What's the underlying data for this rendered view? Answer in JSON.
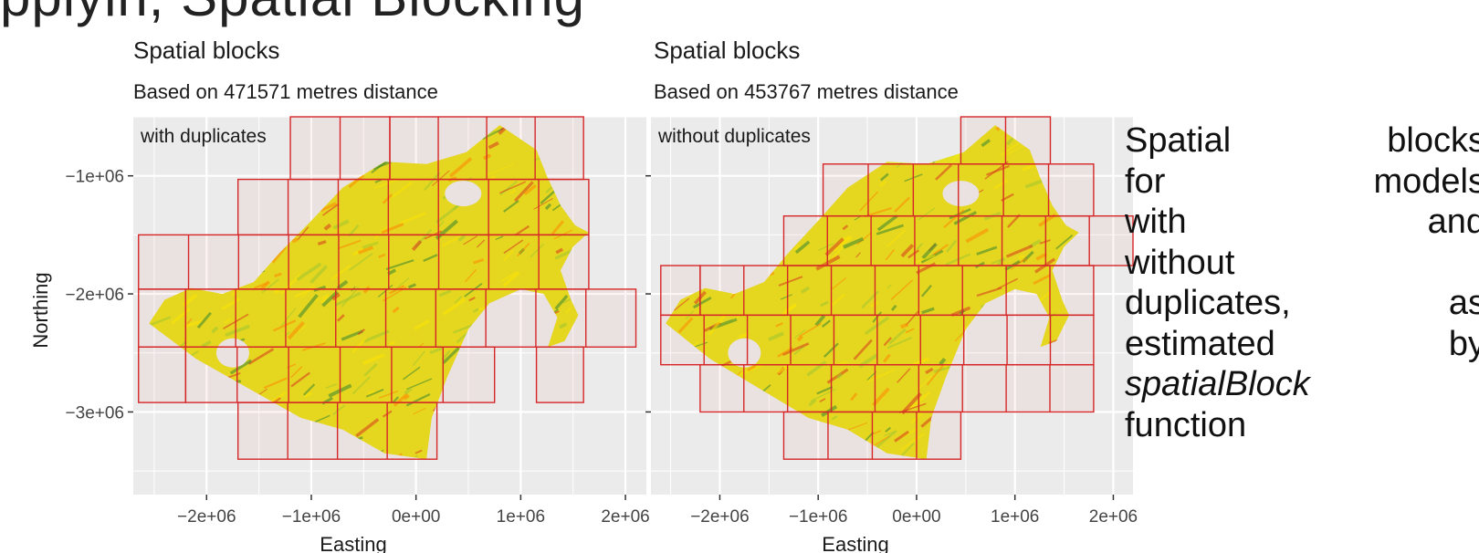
{
  "slide": {
    "title": "pplyin, Spatial Blocking"
  },
  "chart_data": [
    {
      "type": "heatmap",
      "title": "Spatial blocks",
      "subtitle": "Based on 471571 metres distance",
      "annotation": "with duplicates",
      "xlabel": "Easting",
      "ylabel": "Northing",
      "xlim": [
        -2700000,
        2200000
      ],
      "ylim": [
        -3700000,
        -500000
      ],
      "x_ticks": [
        -2000000,
        -1000000,
        0,
        1000000,
        2000000
      ],
      "x_tick_labels": [
        "−2e+06",
        "−1e+06",
        "0e+00",
        "1e+06",
        "2e+06"
      ],
      "y_ticks": [
        -1000000,
        -2000000,
        -3000000
      ],
      "y_tick_labels": [
        "−1e+06",
        "−2e+06",
        "−3e+06"
      ],
      "block_size_m": 471571,
      "grid": true,
      "background_color": "#ebebeb",
      "block_color": "#d62728",
      "raster_colors": [
        "#2e8b2e",
        "#9acd32",
        "#ffee00",
        "#ff8c00",
        "#d9381e"
      ],
      "blocks": [
        {
          "x0": -1200000,
          "x1": -250000,
          "y0": -1030000,
          "y1": -500000
        },
        {
          "x0": -250000,
          "x1": 1600000,
          "y0": -1030000,
          "y1": -500000
        },
        {
          "x0": -1700000,
          "x1": 1650000,
          "y0": -1500000,
          "y1": -1030000
        },
        {
          "x0": -2650000,
          "x1": 1650000,
          "y0": -1960000,
          "y1": -1500000
        },
        {
          "x0": -2650000,
          "x1": -2200000,
          "y0": -2450000,
          "y1": -1960000
        },
        {
          "x0": -2200000,
          "x1": 2100000,
          "y0": -2450000,
          "y1": -1960000
        },
        {
          "x0": -2650000,
          "x1": -2200000,
          "y0": -2920000,
          "y1": -2450000
        },
        {
          "x0": -2200000,
          "x1": 750000,
          "y0": -2920000,
          "y1": -2450000
        },
        {
          "x0": 1150000,
          "x1": 1600000,
          "y0": -2920000,
          "y1": -2450000
        },
        {
          "x0": -1700000,
          "x1": 200000,
          "y0": -3400000,
          "y1": -2920000
        }
      ]
    },
    {
      "type": "heatmap",
      "title": "Spatial blocks",
      "subtitle": "Based on 453767 metres distance",
      "annotation": "without duplicates",
      "xlabel": "Easting",
      "ylabel": "",
      "xlim": [
        -2700000,
        2200000
      ],
      "ylim": [
        -3700000,
        -500000
      ],
      "x_ticks": [
        -2000000,
        -1000000,
        0,
        1000000,
        2000000
      ],
      "x_tick_labels": [
        "−2e+06",
        "−1e+06",
        "0e+00",
        "1e+06",
        "2e+06"
      ],
      "y_ticks": [
        -1000000,
        -2000000,
        -3000000
      ],
      "y_tick_labels": [],
      "block_size_m": 453767,
      "grid": true,
      "background_color": "#ebebeb",
      "block_color": "#d62728",
      "raster_colors": [
        "#2e8b2e",
        "#9acd32",
        "#ffee00",
        "#ff8c00",
        "#d9381e"
      ],
      "blocks": [
        {
          "x0": 450000,
          "x1": 1360000,
          "y0": -900000,
          "y1": -500000
        },
        {
          "x0": -950000,
          "x1": 1800000,
          "y0": -1340000,
          "y1": -900000
        },
        {
          "x0": -1350000,
          "x1": 2200000,
          "y0": -1760000,
          "y1": -1340000
        },
        {
          "x0": -2600000,
          "x1": -2200000,
          "y0": -2180000,
          "y1": -1760000
        },
        {
          "x0": -2200000,
          "x1": 1800000,
          "y0": -2180000,
          "y1": -1760000
        },
        {
          "x0": -2600000,
          "x1": 1800000,
          "y0": -2600000,
          "y1": -2180000
        },
        {
          "x0": -2200000,
          "x1": 1800000,
          "y0": -3000000,
          "y1": -2600000
        },
        {
          "x0": -1350000,
          "x1": 450000,
          "y0": -3400000,
          "y1": -3000000
        }
      ]
    }
  ],
  "caption": {
    "lines": [
      [
        "Spatial",
        "blocks"
      ],
      [
        "for",
        "models"
      ],
      [
        "with",
        "and"
      ],
      [
        "without"
      ],
      [
        "duplicates,",
        "as"
      ],
      [
        "estimated",
        "by"
      ],
      [
        "spatialBlock"
      ],
      [
        "function"
      ]
    ]
  }
}
